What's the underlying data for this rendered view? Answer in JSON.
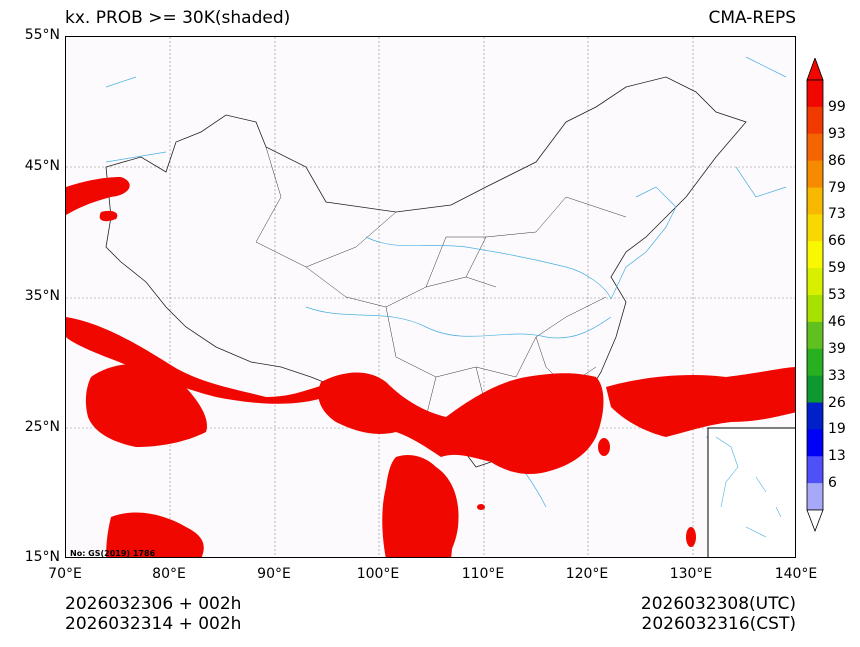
{
  "header": {
    "title_left": "kx. PROB >= 30K(shaded)",
    "title_right": "CMA-REPS"
  },
  "map": {
    "lat_labels": [
      "55°N",
      "45°N",
      "35°N",
      "25°N",
      "15°N"
    ],
    "lon_labels": [
      "70°E",
      "80°E",
      "90°E",
      "100°E",
      "110°E",
      "120°E",
      "130°E",
      "140°E"
    ],
    "stamp": "No: GS(2019) 1786",
    "shade_color": "#f00800"
  },
  "colorbar": {
    "levels": [
      "99",
      "93",
      "86",
      "79",
      "73",
      "66",
      "59",
      "53",
      "46",
      "39",
      "33",
      "26",
      "19",
      "13",
      "6"
    ],
    "colors": [
      "#f00800",
      "#f03a00",
      "#f46400",
      "#f68a00",
      "#f8b800",
      "#f8d800",
      "#f8f800",
      "#d8f000",
      "#a8e000",
      "#60c020",
      "#28b020",
      "#109830",
      "#0020c8",
      "#0000f8",
      "#5050f8",
      "#a8a8f8"
    ]
  },
  "footer": {
    "init_utc": "2026032306  +  002h",
    "init_cst": "2026032314  +  002h",
    "valid_utc": "2026032308(UTC)",
    "valid_cst": "2026032316(CST)"
  }
}
